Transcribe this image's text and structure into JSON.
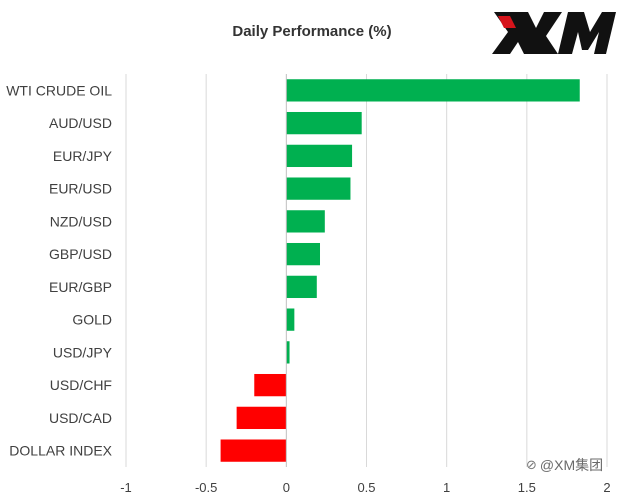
{
  "branding": {
    "logo_text": "XM",
    "watermark": "@XM集团",
    "colors": {
      "logo_black": "#111111",
      "logo_red": "#d6141b"
    }
  },
  "chart_data": {
    "type": "bar",
    "orientation": "horizontal",
    "title": "Daily Performance (%)",
    "xlabel": "",
    "ylabel": "",
    "categories": [
      "WTI CRUDE OIL",
      "AUD/USD",
      "EUR/JPY",
      "EUR/USD",
      "NZD/USD",
      "GBP/USD",
      "EUR/GBP",
      "GOLD",
      "USD/JPY",
      "USD/CHF",
      "USD/CAD",
      "DOLLAR INDEX"
    ],
    "values": [
      1.83,
      0.47,
      0.41,
      0.4,
      0.24,
      0.21,
      0.19,
      0.05,
      0.02,
      -0.2,
      -0.31,
      -0.41
    ],
    "xlim": [
      -1,
      2
    ],
    "xticks": [
      -1,
      -0.5,
      0,
      0.5,
      1,
      1.5,
      2
    ],
    "xtick_labels": [
      "-1",
      "-0.5",
      "0",
      "0.5",
      "1",
      "1.5",
      "2"
    ],
    "grid": "vertical",
    "legend": "none",
    "colors": {
      "positive": "#00b050",
      "negative": "#ff0000",
      "grid": "#d9d9d9",
      "axis": "#bfbfbf",
      "label": "#404040"
    }
  }
}
